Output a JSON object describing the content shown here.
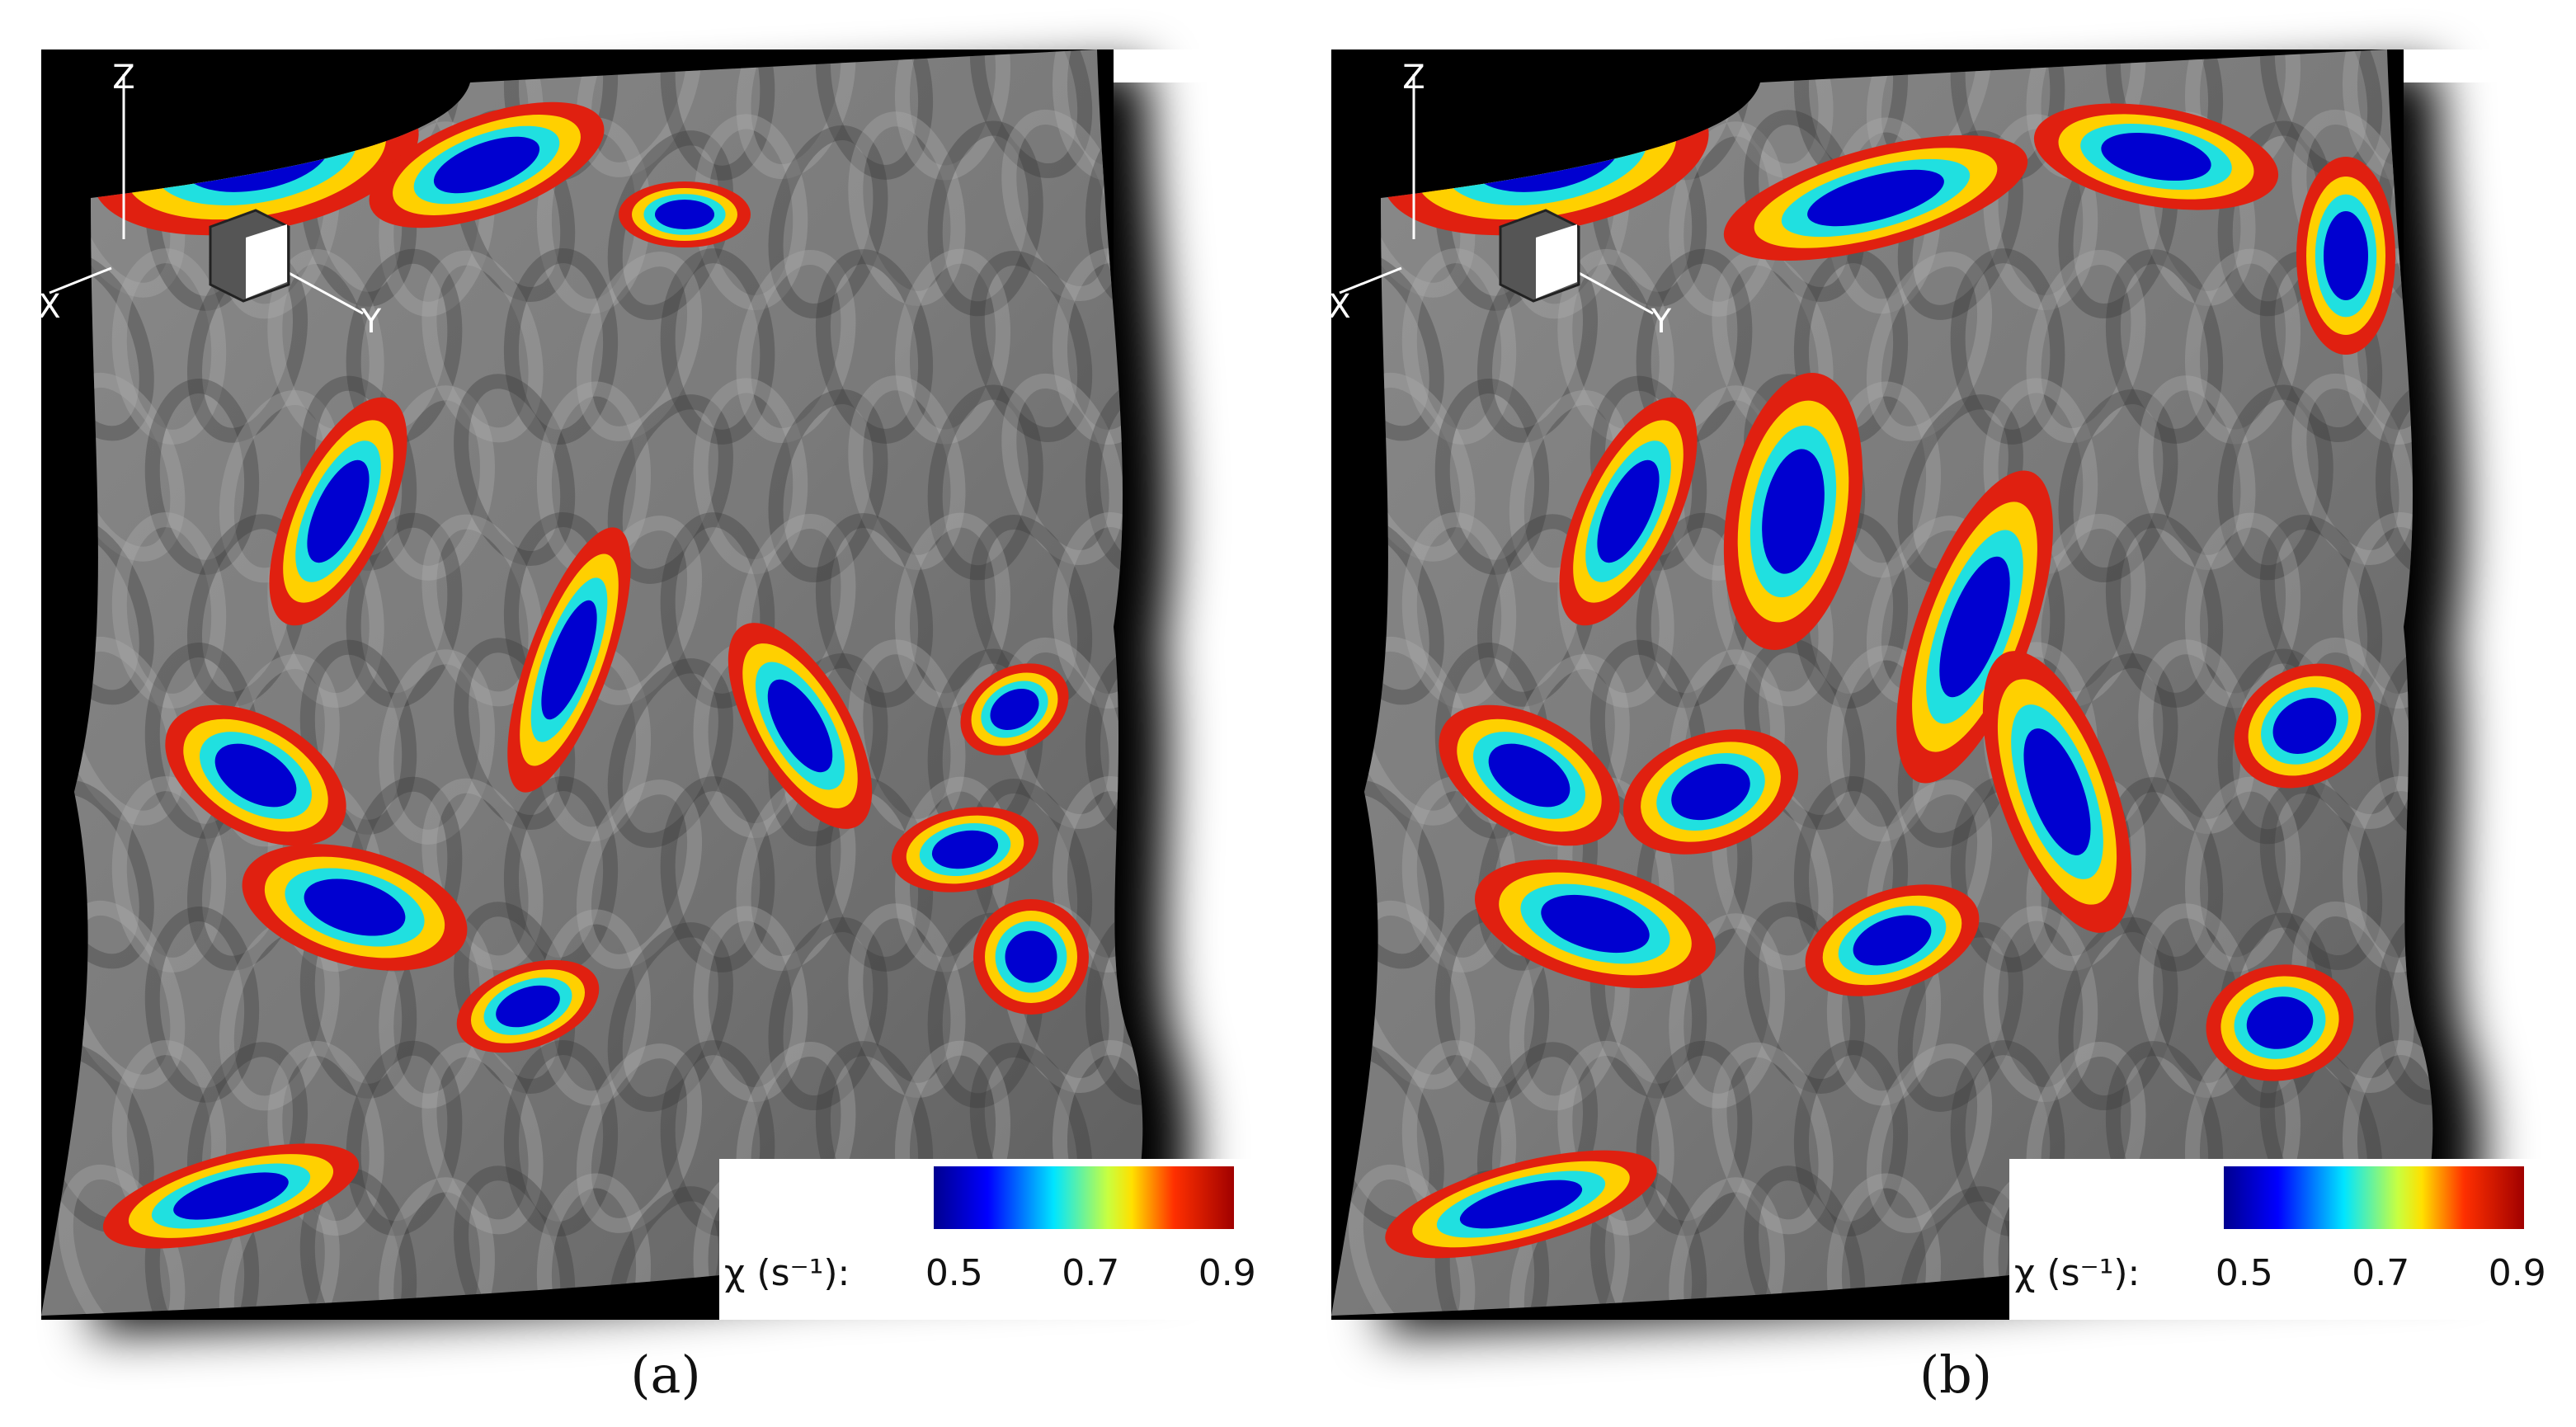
{
  "panels": [
    {
      "caption": "(a)",
      "axes": {
        "z": "Z",
        "x": "X",
        "y": "Y"
      },
      "colorbar": {
        "label": "χ (s⁻¹):",
        "lim": [
          0.47,
          0.91
        ],
        "ticks": [
          0.5,
          0.7,
          0.9
        ]
      }
    },
    {
      "caption": "(b)",
      "axes": {
        "z": "Z",
        "x": "X",
        "y": "Y"
      },
      "colorbar": {
        "label": "χ (s⁻¹):",
        "lim": [
          0.47,
          0.91
        ],
        "ticks": [
          0.5,
          0.7,
          0.9
        ]
      }
    }
  ]
}
